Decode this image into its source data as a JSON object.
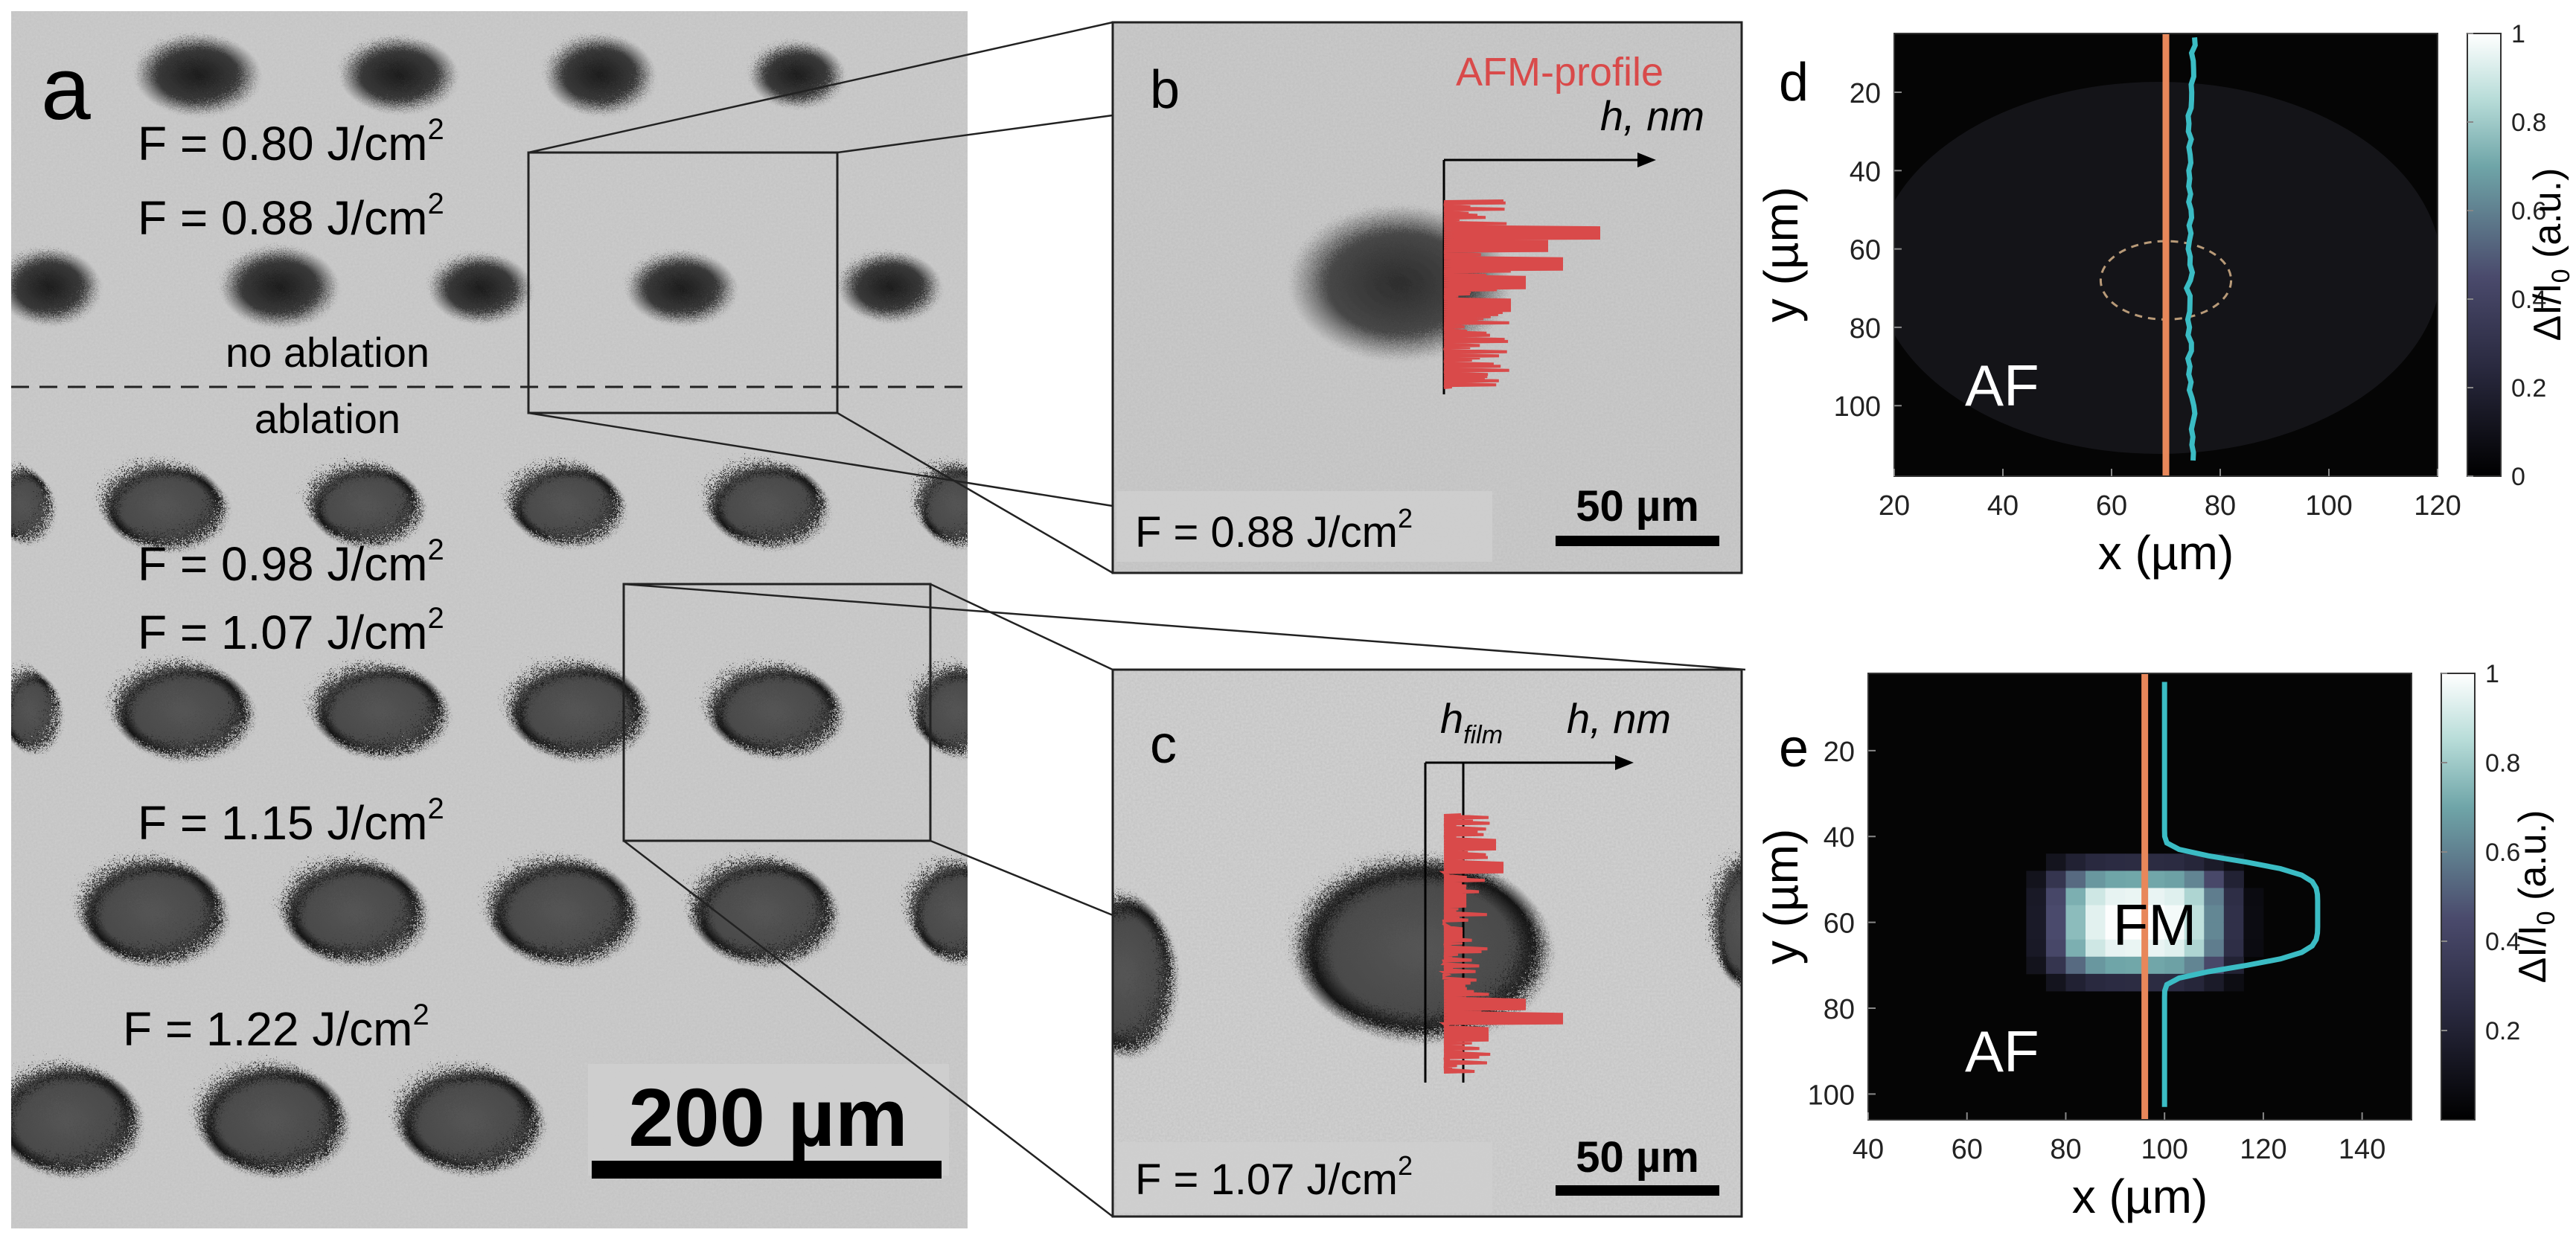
{
  "panel_a": {
    "letter": "a",
    "fluences": [
      "F = 0.80 J/cm",
      "F = 0.88 J/cm",
      "F = 0.98 J/cm",
      "F = 1.07 J/cm",
      "F = 1.15 J/cm",
      "F =  1.22 J/cm"
    ],
    "superscript": "2",
    "no_ablation": "no ablation",
    "ablation": "ablation",
    "scalebar": "200 µm"
  },
  "panel_b": {
    "letter": "b",
    "profile_label": "AFM-profile",
    "axis_label": "h, nm",
    "fluence": "F = 0.88 J/cm",
    "superscript": "2",
    "scalebar": "50 µm",
    "profile_color": "#d94a4a"
  },
  "panel_c": {
    "letter": "c",
    "axis_label": "h, nm",
    "h_film_main": "h",
    "h_film_sub": "film",
    "fluence": "F = 1.07 J/cm",
    "superscript": "2",
    "scalebar": "50 µm"
  },
  "chart_data": [
    {
      "panel": "d",
      "type": "heatmap",
      "xlabel": "x (µm)",
      "ylabel": "y (µm)",
      "xlim": [
        20,
        120
      ],
      "ylim": [
        118,
        5
      ],
      "xticks": [
        "20",
        "40",
        "60",
        "80",
        "100",
        "120"
      ],
      "yticks": [
        "20",
        "40",
        "60",
        "80",
        "100"
      ],
      "colorbar_label": "ΔI/I",
      "colorbar_sub": "0",
      "colorbar_suffix": " (a.u.)",
      "colorbar_ticks": [
        "0",
        "0.2",
        "0.4",
        "0.6",
        "0.8",
        "1"
      ],
      "region_labels": [
        "AF"
      ],
      "vertical_line_x": 70,
      "line_color": "#e8875a",
      "profile_color": "#3bbcc4",
      "ellipse_center": [
        70,
        68
      ],
      "ellipse_radius": [
        12,
        10
      ]
    },
    {
      "panel": "e",
      "type": "heatmap",
      "xlabel": "x (µm)",
      "ylabel": "y (µm)",
      "xlim": [
        40,
        150
      ],
      "ylim": [
        106,
        2
      ],
      "xticks": [
        "40",
        "60",
        "80",
        "100",
        "120",
        "140"
      ],
      "yticks": [
        "20",
        "40",
        "60",
        "80",
        "100"
      ],
      "colorbar_label": "ΔI/I",
      "colorbar_sub": "0",
      "colorbar_suffix": " (a.u.)",
      "colorbar_ticks": [
        "0.2",
        "0.4",
        "0.6",
        "0.8",
        "1"
      ],
      "region_labels": [
        "FM",
        "AF"
      ],
      "vertical_line_x": 96,
      "line_color": "#e8875a",
      "profile_color": "#3bbcc4"
    }
  ]
}
